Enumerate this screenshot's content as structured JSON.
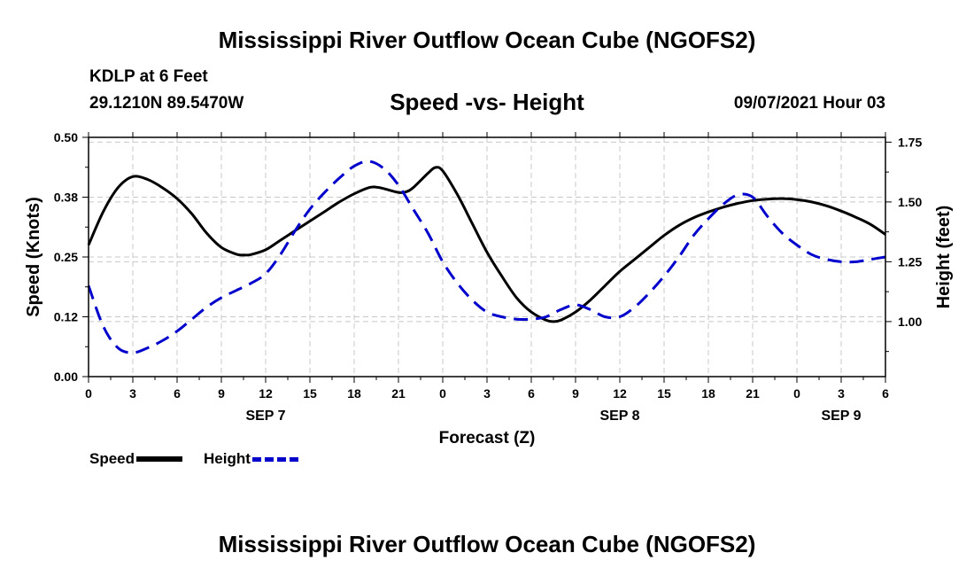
{
  "header": {
    "title": "Mississippi River Outflow Ocean Cube (NGOFS2)",
    "footer_title": "Mississippi River Outflow Ocean Cube (NGOFS2)",
    "station": "KDLP at 6 Feet",
    "coords": "29.1210N  89.5470W",
    "subtitle": "Speed -vs- Height",
    "datetime": "09/07/2021 Hour 03"
  },
  "legend": {
    "speed_label": "Speed",
    "height_label": "Height"
  },
  "colors": {
    "speed": "#000000",
    "height": "#0000cc",
    "grid": "#c8c8c8"
  },
  "chart_data": {
    "type": "line",
    "title": "Speed -vs- Height",
    "xlabel": "Forecast (Z)",
    "ylabel": "Speed (Knots)",
    "y2label": "Height (feet)",
    "xlim": [
      0,
      54
    ],
    "ylim": [
      0,
      0.5
    ],
    "y2lim": [
      0.77,
      1.77
    ],
    "grid": true,
    "x_ticks": [
      0,
      3,
      6,
      9,
      12,
      15,
      18,
      21,
      24,
      27,
      30,
      33,
      36,
      39,
      42,
      45,
      48,
      51,
      54
    ],
    "x_tick_labels": [
      "0",
      "3",
      "6",
      "9",
      "12",
      "15",
      "18",
      "21",
      "0",
      "3",
      "6",
      "9",
      "12",
      "15",
      "18",
      "21",
      "0",
      "3",
      "6"
    ],
    "y_ticks": [
      0,
      0.125,
      0.25,
      0.375,
      0.5
    ],
    "y_tick_labels": [
      "0.00",
      "0.12",
      "0.25",
      "0.38",
      "0.50"
    ],
    "y2_ticks": [
      1.0,
      1.25,
      1.5,
      1.75
    ],
    "y2_tick_labels": [
      "1.00",
      "1.25",
      "1.50",
      "1.75"
    ],
    "date_labels": [
      {
        "x": 12,
        "label": "SEP 7"
      },
      {
        "x": 36,
        "label": "SEP 8"
      },
      {
        "x": 51,
        "label": "SEP 9"
      }
    ],
    "series": [
      {
        "name": "Speed",
        "axis": "left",
        "x": [
          0,
          1,
          2,
          3,
          4,
          5,
          6,
          7,
          8,
          9,
          10,
          10.5,
          11,
          12,
          13,
          14,
          15,
          16,
          17,
          18,
          19,
          19.5,
          20,
          21,
          21.5,
          22,
          23,
          23.5,
          24,
          25,
          26,
          27,
          28,
          29,
          30,
          31,
          31.5,
          32,
          33,
          34,
          35,
          36,
          37,
          38,
          39,
          40,
          41,
          42,
          43,
          44,
          45,
          46,
          47,
          48,
          49,
          50,
          51,
          52,
          53,
          54
        ],
        "values": [
          0.275,
          0.345,
          0.395,
          0.418,
          0.412,
          0.395,
          0.372,
          0.34,
          0.3,
          0.27,
          0.256,
          0.254,
          0.255,
          0.265,
          0.285,
          0.305,
          0.325,
          0.345,
          0.365,
          0.382,
          0.395,
          0.396,
          0.393,
          0.385,
          0.386,
          0.395,
          0.425,
          0.437,
          0.43,
          0.38,
          0.32,
          0.26,
          0.21,
          0.165,
          0.135,
          0.118,
          0.115,
          0.118,
          0.135,
          0.16,
          0.19,
          0.22,
          0.245,
          0.27,
          0.295,
          0.316,
          0.332,
          0.344,
          0.354,
          0.362,
          0.368,
          0.371,
          0.372,
          0.37,
          0.365,
          0.357,
          0.346,
          0.333,
          0.318,
          0.297
        ]
      },
      {
        "name": "Height",
        "axis": "right",
        "x": [
          0,
          1,
          2,
          3,
          4,
          5,
          6,
          7,
          8,
          9,
          10,
          11,
          12,
          13,
          14,
          15,
          16,
          17,
          18,
          19,
          20,
          21,
          22,
          23,
          24,
          25,
          26,
          27,
          28,
          29,
          30,
          31,
          32,
          33,
          34,
          35,
          36,
          37,
          38,
          39,
          40,
          41,
          42,
          43,
          44,
          45,
          46,
          47,
          48,
          49,
          50,
          51,
          52,
          53,
          54
        ],
        "values": [
          1.15,
          0.98,
          0.89,
          0.87,
          0.89,
          0.92,
          0.96,
          1.01,
          1.06,
          1.1,
          1.13,
          1.16,
          1.2,
          1.28,
          1.38,
          1.47,
          1.54,
          1.6,
          1.65,
          1.67,
          1.64,
          1.57,
          1.47,
          1.37,
          1.25,
          1.16,
          1.09,
          1.04,
          1.02,
          1.01,
          1.01,
          1.02,
          1.05,
          1.07,
          1.05,
          1.02,
          1.02,
          1.06,
          1.12,
          1.19,
          1.27,
          1.36,
          1.43,
          1.49,
          1.53,
          1.52,
          1.44,
          1.37,
          1.32,
          1.28,
          1.26,
          1.25,
          1.25,
          1.26,
          1.27
        ]
      }
    ]
  }
}
